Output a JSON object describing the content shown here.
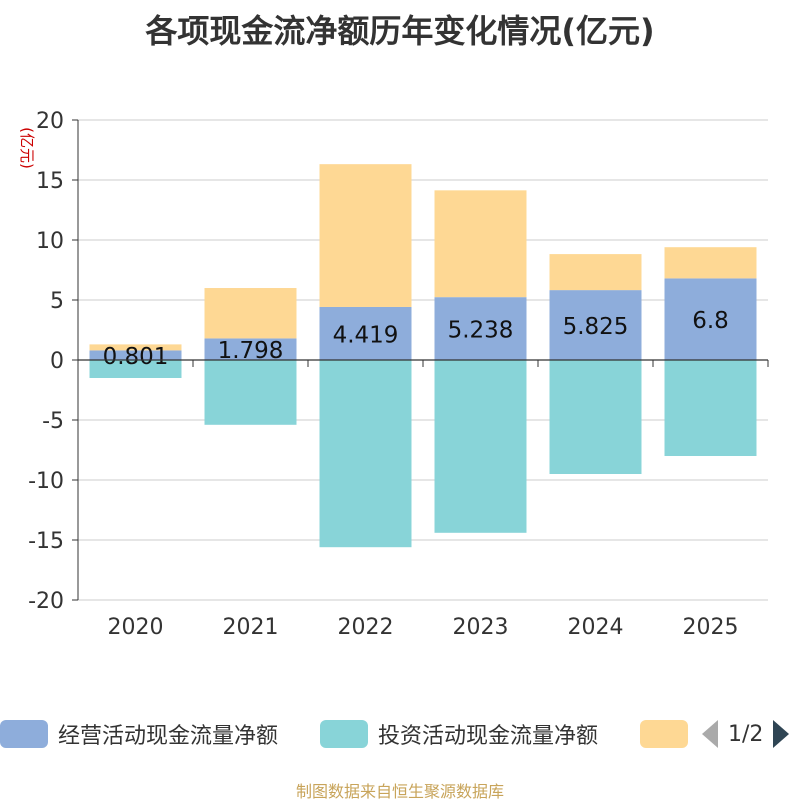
{
  "chart_data": {
    "type": "bar",
    "stacked": true,
    "title": "各项现金流净额历年变化情况(亿元)",
    "ylabel": "(亿元)",
    "ylim": [
      -20,
      20
    ],
    "yticks": [
      20,
      15,
      10,
      5,
      0,
      -5,
      -10,
      -15,
      -20
    ],
    "categories": [
      "2020",
      "2021",
      "2022",
      "2023",
      "2024",
      "2025"
    ],
    "series": [
      {
        "name": "经营活动现金流量净额",
        "color": "#8eaddb",
        "values": [
          0.801,
          1.798,
          4.419,
          5.238,
          5.825,
          6.8
        ]
      },
      {
        "name": "投资活动现金流量净额",
        "color": "#88d4d8",
        "values": [
          -1.5,
          -5.4,
          -15.6,
          -14.4,
          -9.5,
          -8.0
        ]
      },
      {
        "name": "",
        "color": "#fed894",
        "values": [
          0.5,
          4.2,
          11.9,
          8.9,
          3.0,
          2.6
        ]
      }
    ],
    "data_labels": [
      "0.801",
      "1.798",
      "4.419",
      "5.238",
      "5.825",
      "6.8"
    ]
  },
  "legend": {
    "items": [
      {
        "label": "经营活动现金流量净额",
        "color": "#8eaddb"
      },
      {
        "label": "投资活动现金流量净额",
        "color": "#88d4d8"
      },
      {
        "label": "",
        "color": "#fed894"
      }
    ],
    "page_indicator": "1/2"
  },
  "footer": "制图数据来自恒生聚源数据库"
}
